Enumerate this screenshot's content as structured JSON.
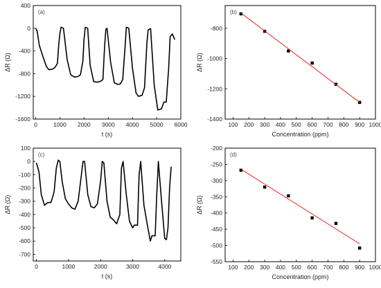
{
  "chart_data": [
    {
      "panel": "(a)",
      "type": "line",
      "xlabel": "t (s)",
      "ylabel": "ΔR (Ω)",
      "xlim": [
        -100,
        6000
      ],
      "ylim": [
        -1600,
        400
      ],
      "xticks": [
        0,
        1000,
        2000,
        3000,
        4000,
        5000,
        6000
      ],
      "yticks": [
        400,
        0,
        -400,
        -800,
        -1200,
        -1600
      ],
      "series": [
        {
          "x": [
            0,
            60,
            150,
            300,
            450,
            550,
            700,
            800,
            900,
            950,
            1000,
            1050,
            1150,
            1300,
            1450,
            1600,
            1750,
            1850,
            1950,
            2000,
            2050,
            2150,
            2250,
            2400,
            2550,
            2700,
            2780,
            2850,
            2900,
            2950,
            3100,
            3250,
            3400,
            3500,
            3600,
            3700,
            3750,
            3850,
            4000,
            4150,
            4250,
            4400,
            4500,
            4600,
            4650,
            4750,
            4900,
            5050,
            5200,
            5300,
            5400,
            5500,
            5560,
            5650,
            5750
          ],
          "y": [
            0,
            -50,
            -300,
            -500,
            -680,
            -730,
            -720,
            -690,
            -620,
            -300,
            -100,
            20,
            0,
            -550,
            -820,
            -860,
            -850,
            -820,
            -580,
            -200,
            20,
            0,
            -650,
            -940,
            -950,
            -930,
            -900,
            -320,
            -20,
            0,
            -600,
            -960,
            -990,
            -980,
            -900,
            -300,
            20,
            0,
            -700,
            -1140,
            -1200,
            -1180,
            -1050,
            -250,
            -30,
            -5,
            -1000,
            -1440,
            -1420,
            -1300,
            -1300,
            -700,
            -150,
            -100,
            -200
          ]
        }
      ]
    },
    {
      "panel": "(b)",
      "type": "scatter",
      "xlabel": "Concentration (ppm)",
      "ylabel": "ΔR (Ω)",
      "xlim": [
        50,
        1000
      ],
      "ylim": [
        -1400,
        -650
      ],
      "xticks": [
        100,
        200,
        300,
        400,
        500,
        600,
        700,
        800,
        900,
        1000
      ],
      "yticks": [
        -800,
        -1000,
        -1200,
        -1400
      ],
      "series": [
        {
          "x": [
            150,
            300,
            450,
            600,
            750,
            900
          ],
          "y": [
            -705,
            -820,
            -950,
            -1030,
            -1170,
            -1290
          ]
        }
      ],
      "fit": {
        "x": [
          150,
          900
        ],
        "y": [
          -700,
          -1290
        ]
      }
    },
    {
      "panel": "(c)",
      "type": "line",
      "xlabel": "t (s)",
      "ylabel": "ΔR (Ω)",
      "xlim": [
        -100,
        4500
      ],
      "ylim": [
        -750,
        100
      ],
      "xticks": [
        0,
        1000,
        2000,
        3000,
        4000
      ],
      "yticks": [
        100,
        0,
        -100,
        -200,
        -300,
        -400,
        -500,
        -600,
        -700
      ],
      "series": [
        {
          "x": [
            0,
            80,
            150,
            250,
            350,
            450,
            550,
            620,
            680,
            730,
            800,
            900,
            1000,
            1100,
            1200,
            1300,
            1400,
            1450,
            1500,
            1600,
            1700,
            1800,
            1900,
            2000,
            2050,
            2100,
            2200,
            2300,
            2400,
            2500,
            2600,
            2650,
            2700,
            2800,
            2900,
            3000,
            3050,
            3150,
            3200,
            3250,
            3350,
            3450,
            3550,
            3600,
            3700,
            3750,
            3800,
            3900,
            4000,
            4050,
            4100,
            4150,
            4200
          ],
          "y": [
            -10,
            -80,
            -250,
            -330,
            -310,
            -310,
            -230,
            -50,
            10,
            0,
            -150,
            -280,
            -320,
            -350,
            -360,
            -300,
            -100,
            0,
            0,
            -250,
            -340,
            -350,
            -320,
            -150,
            0,
            -10,
            -300,
            -420,
            -440,
            -470,
            -400,
            -50,
            0,
            -250,
            -450,
            -500,
            -480,
            -480,
            -100,
            0,
            -330,
            -470,
            -600,
            -560,
            -560,
            -250,
            0,
            -300,
            -580,
            -590,
            -500,
            -200,
            -40
          ]
        }
      ]
    },
    {
      "panel": "(d)",
      "type": "scatter",
      "xlabel": "Concentration (ppm)",
      "ylabel": "ΔR (Ω)",
      "xlim": [
        50,
        1000
      ],
      "ylim": [
        -550,
        -200
      ],
      "xticks": [
        100,
        200,
        300,
        400,
        500,
        600,
        700,
        800,
        900,
        1000
      ],
      "yticks": [
        -200,
        -250,
        -300,
        -350,
        -400,
        -450,
        -500,
        -550
      ],
      "series": [
        {
          "x": [
            150,
            300,
            450,
            600,
            750,
            900
          ],
          "y": [
            -268,
            -320,
            -347,
            -415,
            -432,
            -508
          ]
        }
      ],
      "fit": {
        "x": [
          150,
          900
        ],
        "y": [
          -265,
          -495
        ]
      }
    }
  ]
}
